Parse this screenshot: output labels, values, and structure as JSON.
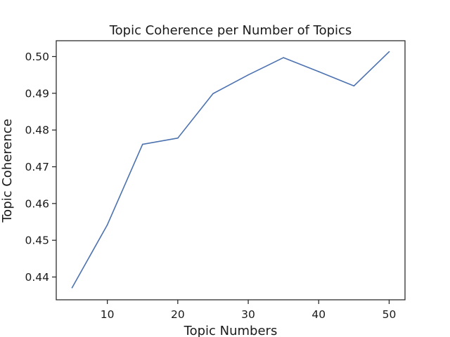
{
  "chart_data": {
    "type": "line",
    "title": "Topic Coherence per Number of Topics",
    "xlabel": "Topic Numbers",
    "ylabel": "Topic Coherence",
    "x": [
      5,
      10,
      15,
      20,
      25,
      30,
      35,
      40,
      45,
      50
    ],
    "series": [
      {
        "values": [
          0.4371,
          0.4542,
          0.4761,
          0.4778,
          0.4899,
          0.495,
          0.4997,
          0.4959,
          0.492,
          0.5013
        ],
        "color": "#4c72b0"
      }
    ],
    "xlim": [
      2.75,
      52.25
    ],
    "ylim": [
      0.4338,
      0.5043
    ],
    "xticks": [
      10,
      20,
      30,
      40,
      50
    ],
    "xtick_labels": [
      "10",
      "20",
      "30",
      "40",
      "50"
    ],
    "yticks": [
      0.44,
      0.45,
      0.46,
      0.47,
      0.48,
      0.49,
      0.5
    ],
    "ytick_labels": [
      "0.44",
      "0.45",
      "0.46",
      "0.47",
      "0.48",
      "0.49",
      "0.50"
    ],
    "grid": false,
    "legend": "none"
  }
}
